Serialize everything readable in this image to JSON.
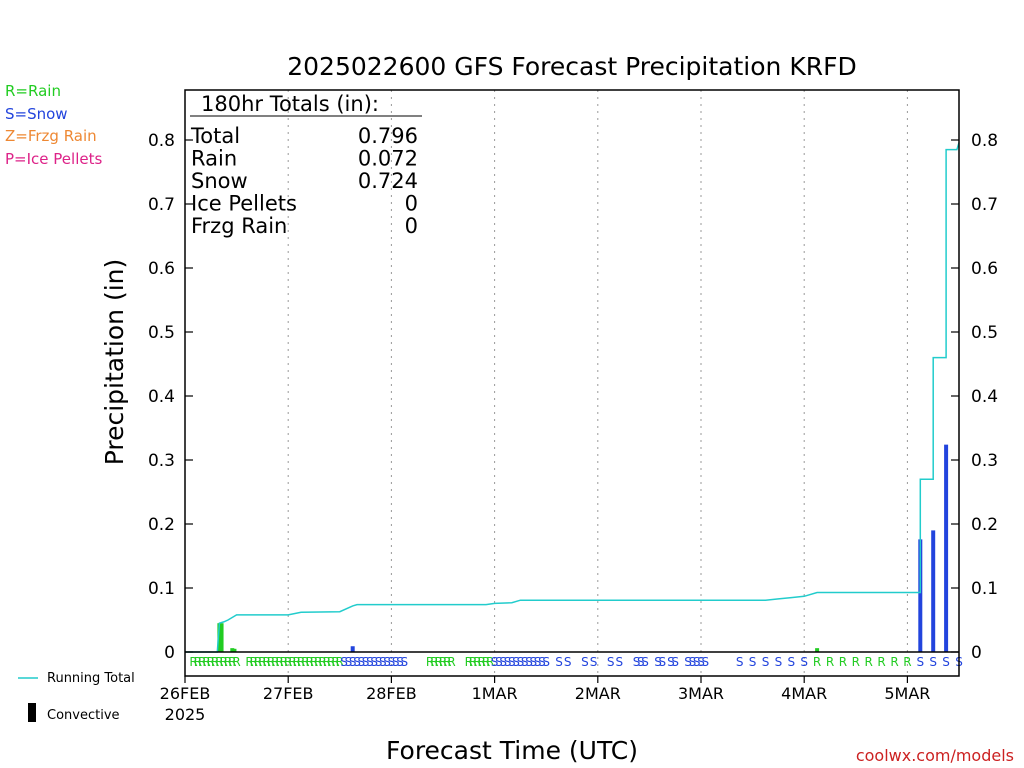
{
  "chart_data": {
    "type": "bar",
    "title": "2025022600 GFS Forecast Precipitation KRFD",
    "xlabel": "Forecast Time (UTC)",
    "ylabel": "Precipitation (in)",
    "ylim": [
      0,
      0.88
    ],
    "yticks": [
      "0",
      "0.1",
      "0.2",
      "0.3",
      "0.4",
      "0.5",
      "0.6",
      "0.7",
      "0.8"
    ],
    "xlim_hours": [
      0,
      180
    ],
    "xticks": [
      {
        "hour": 0,
        "label": "26FEB",
        "sub": "2025"
      },
      {
        "hour": 24,
        "label": "27FEB",
        "sub": ""
      },
      {
        "hour": 48,
        "label": "28FEB",
        "sub": ""
      },
      {
        "hour": 72,
        "label": "1MAR",
        "sub": ""
      },
      {
        "hour": 96,
        "label": "2MAR",
        "sub": ""
      },
      {
        "hour": 120,
        "label": "3MAR",
        "sub": ""
      },
      {
        "hour": 144,
        "label": "4MAR",
        "sub": ""
      },
      {
        "hour": 168,
        "label": "5MAR",
        "sub": ""
      }
    ],
    "grid": "vertical dotted",
    "legend_types": [
      {
        "text": "R=Rain",
        "color": "#22cc22"
      },
      {
        "text": "S=Snow",
        "color": "#2244dd"
      },
      {
        "text": "Z=Frzg Rain",
        "color": "#ee8833"
      },
      {
        "text": "P=Ice Pellets",
        "color": "#dd2288"
      }
    ],
    "legend_series": [
      {
        "text": "Running Total",
        "color": "#22cccc"
      },
      {
        "text": "Convective",
        "color": "#000000"
      }
    ],
    "totals": {
      "header": "180hr Totals (in):",
      "rows": [
        {
          "label": "Total",
          "value": "0.796"
        },
        {
          "label": "Rain",
          "value": "0.072"
        },
        {
          "label": "Snow",
          "value": "0.724"
        },
        {
          "label": "Ice Pellets",
          "value": "0"
        },
        {
          "label": "Frzg Rain",
          "value": "0"
        }
      ]
    },
    "bars": [
      {
        "hour": 8,
        "value": 0.045,
        "type": "rain"
      },
      {
        "hour": 8.5,
        "value": 0.045,
        "type": "rain"
      },
      {
        "hour": 11,
        "value": 0.006,
        "type": "rain"
      },
      {
        "hour": 11.5,
        "value": 0.005,
        "type": "rain"
      },
      {
        "hour": 39,
        "value": 0.009,
        "type": "snow"
      },
      {
        "hour": 147,
        "value": 0.006,
        "type": "rain"
      },
      {
        "hour": 171,
        "value": 0.176,
        "type": "snow"
      },
      {
        "hour": 174,
        "value": 0.19,
        "type": "snow"
      },
      {
        "hour": 177,
        "value": 0.324,
        "type": "snow"
      }
    ],
    "running_total": [
      [
        0,
        0
      ],
      [
        7.5,
        0
      ],
      [
        8,
        0.045
      ],
      [
        9,
        0.047
      ],
      [
        10,
        0.05
      ],
      [
        12,
        0.058
      ],
      [
        24,
        0.058
      ],
      [
        27,
        0.062
      ],
      [
        36,
        0.063
      ],
      [
        39,
        0.072
      ],
      [
        40,
        0.074
      ],
      [
        70,
        0.074
      ],
      [
        72,
        0.076
      ],
      [
        76,
        0.077
      ],
      [
        78,
        0.081
      ],
      [
        135,
        0.081
      ],
      [
        138,
        0.083
      ],
      [
        141,
        0.085
      ],
      [
        144,
        0.087
      ],
      [
        147,
        0.093
      ],
      [
        171,
        0.093
      ],
      [
        171,
        0.27
      ],
      [
        174,
        0.27
      ],
      [
        174,
        0.46
      ],
      [
        177,
        0.46
      ],
      [
        177,
        0.785
      ],
      [
        179.5,
        0.785
      ],
      [
        180,
        0.796
      ]
    ],
    "type_markers": [
      {
        "hour": 2,
        "label": "R"
      },
      {
        "hour": 3,
        "label": "R"
      },
      {
        "hour": 4,
        "label": "R"
      },
      {
        "hour": 5,
        "label": "R"
      },
      {
        "hour": 6,
        "label": "R"
      },
      {
        "hour": 7,
        "label": "R"
      },
      {
        "hour": 8,
        "label": "R"
      },
      {
        "hour": 9,
        "label": "R"
      },
      {
        "hour": 10,
        "label": "R"
      },
      {
        "hour": 11,
        "label": "R"
      },
      {
        "hour": 12,
        "label": "R"
      },
      {
        "hour": 15,
        "label": "R"
      },
      {
        "hour": 16,
        "label": "R"
      },
      {
        "hour": 17,
        "label": "R"
      },
      {
        "hour": 18,
        "label": "R"
      },
      {
        "hour": 19,
        "label": "R"
      },
      {
        "hour": 20,
        "label": "R"
      },
      {
        "hour": 21,
        "label": "R"
      },
      {
        "hour": 22,
        "label": "R"
      },
      {
        "hour": 23,
        "label": "R"
      },
      {
        "hour": 24,
        "label": "R"
      },
      {
        "hour": 25,
        "label": "R"
      },
      {
        "hour": 26,
        "label": "R"
      },
      {
        "hour": 27,
        "label": "R"
      },
      {
        "hour": 28,
        "label": "R"
      },
      {
        "hour": 29,
        "label": "R"
      },
      {
        "hour": 30,
        "label": "R"
      },
      {
        "hour": 31,
        "label": "R"
      },
      {
        "hour": 32,
        "label": "R"
      },
      {
        "hour": 33,
        "label": "R"
      },
      {
        "hour": 34,
        "label": "R"
      },
      {
        "hour": 35,
        "label": "R"
      },
      {
        "hour": 36,
        "label": "R"
      },
      {
        "hour": 37,
        "label": "S"
      },
      {
        "hour": 38,
        "label": "S"
      },
      {
        "hour": 39,
        "label": "S"
      },
      {
        "hour": 40,
        "label": "S"
      },
      {
        "hour": 41,
        "label": "S"
      },
      {
        "hour": 42,
        "label": "S"
      },
      {
        "hour": 43,
        "label": "S"
      },
      {
        "hour": 44,
        "label": "S"
      },
      {
        "hour": 45,
        "label": "S"
      },
      {
        "hour": 46,
        "label": "S"
      },
      {
        "hour": 47,
        "label": "S"
      },
      {
        "hour": 48,
        "label": "S"
      },
      {
        "hour": 49,
        "label": "S"
      },
      {
        "hour": 50,
        "label": "S"
      },
      {
        "hour": 51,
        "label": "S"
      },
      {
        "hour": 57,
        "label": "R"
      },
      {
        "hour": 58,
        "label": "R"
      },
      {
        "hour": 59,
        "label": "R"
      },
      {
        "hour": 60,
        "label": "R"
      },
      {
        "hour": 61,
        "label": "R"
      },
      {
        "hour": 62,
        "label": "R"
      },
      {
        "hour": 66,
        "label": "R"
      },
      {
        "hour": 67,
        "label": "R"
      },
      {
        "hour": 68,
        "label": "R"
      },
      {
        "hour": 69,
        "label": "R"
      },
      {
        "hour": 70,
        "label": "R"
      },
      {
        "hour": 71,
        "label": "R"
      },
      {
        "hour": 72,
        "label": "S"
      },
      {
        "hour": 73,
        "label": "S"
      },
      {
        "hour": 74,
        "label": "S"
      },
      {
        "hour": 75,
        "label": "S"
      },
      {
        "hour": 76,
        "label": "S"
      },
      {
        "hour": 77,
        "label": "S"
      },
      {
        "hour": 78,
        "label": "S"
      },
      {
        "hour": 79,
        "label": "S"
      },
      {
        "hour": 80,
        "label": "S"
      },
      {
        "hour": 81,
        "label": "S"
      },
      {
        "hour": 82,
        "label": "S"
      },
      {
        "hour": 83,
        "label": "S"
      },
      {
        "hour": 84,
        "label": "S"
      },
      {
        "hour": 87,
        "label": "S"
      },
      {
        "hour": 89,
        "label": "S"
      },
      {
        "hour": 93,
        "label": "S"
      },
      {
        "hour": 95,
        "label": "S"
      },
      {
        "hour": 99,
        "label": "S"
      },
      {
        "hour": 101,
        "label": "S"
      },
      {
        "hour": 105,
        "label": "S"
      },
      {
        "hour": 106,
        "label": "S"
      },
      {
        "hour": 107,
        "label": "S"
      },
      {
        "hour": 110,
        "label": "S"
      },
      {
        "hour": 111,
        "label": "S"
      },
      {
        "hour": 113,
        "label": "S"
      },
      {
        "hour": 114,
        "label": "S"
      },
      {
        "hour": 117,
        "label": "S"
      },
      {
        "hour": 118,
        "label": "S"
      },
      {
        "hour": 119,
        "label": "S"
      },
      {
        "hour": 120,
        "label": "S"
      },
      {
        "hour": 121,
        "label": "S"
      },
      {
        "hour": 129,
        "label": "S"
      },
      {
        "hour": 132,
        "label": "S"
      },
      {
        "hour": 135,
        "label": "S"
      },
      {
        "hour": 138,
        "label": "S"
      },
      {
        "hour": 141,
        "label": "S"
      },
      {
        "hour": 144,
        "label": "S"
      },
      {
        "hour": 147,
        "label": "R"
      },
      {
        "hour": 150,
        "label": "R"
      },
      {
        "hour": 153,
        "label": "R"
      },
      {
        "hour": 156,
        "label": "R"
      },
      {
        "hour": 159,
        "label": "R"
      },
      {
        "hour": 162,
        "label": "R"
      },
      {
        "hour": 165,
        "label": "R"
      },
      {
        "hour": 168,
        "label": "R"
      },
      {
        "hour": 171,
        "label": "S"
      },
      {
        "hour": 174,
        "label": "S"
      },
      {
        "hour": 177,
        "label": "S"
      },
      {
        "hour": 180,
        "label": "S"
      }
    ],
    "colors": {
      "rain": "#22cc22",
      "snow": "#2244dd",
      "running_total": "#22cccc",
      "axis": "#000000",
      "grid": "#999999",
      "credit": "#cc2222"
    }
  },
  "credit": "coolwx.com/models"
}
